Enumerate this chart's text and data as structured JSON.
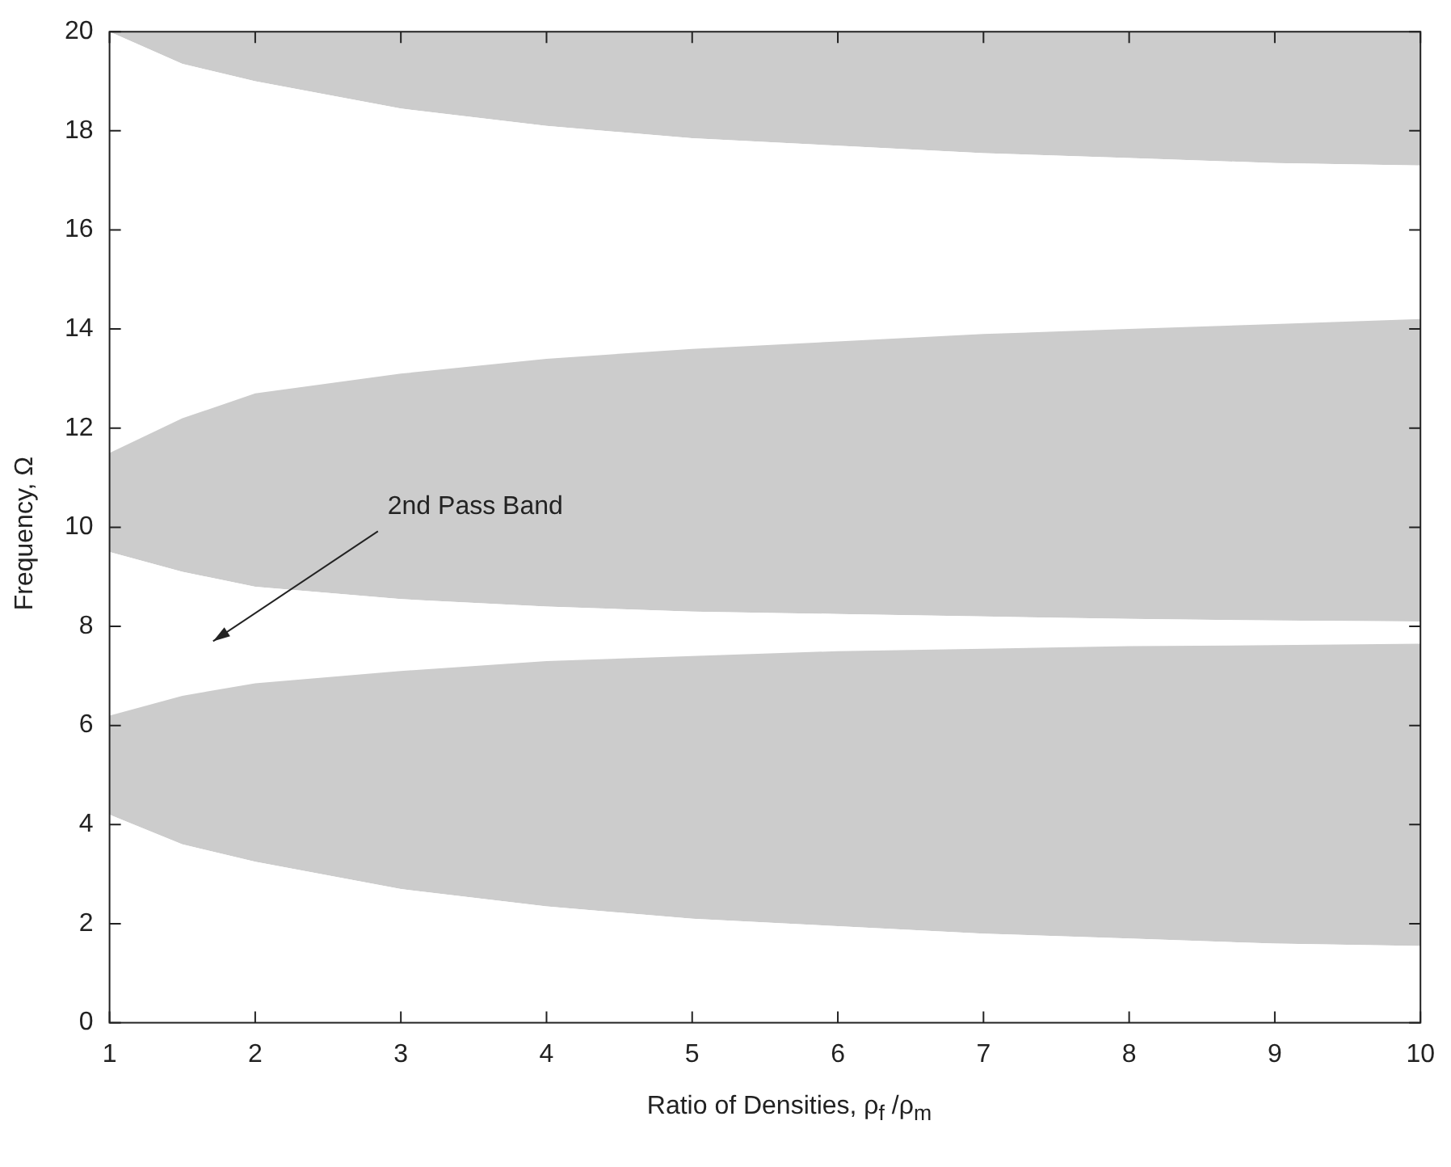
{
  "chart_data": {
    "type": "area",
    "stacked": true,
    "xlabel": "Ratio of Densities, ρ$_{f}$ /ρ$_{m}$",
    "ylabel": "Frequency, Ω",
    "x": [
      1,
      1.5,
      2,
      3,
      4,
      5,
      6,
      7,
      8,
      9,
      10
    ],
    "xlim": [
      1,
      10
    ],
    "xticks": [
      1,
      2,
      3,
      4,
      5,
      6,
      7,
      8,
      9,
      10
    ],
    "ylim": [
      0,
      20
    ],
    "yticks": [
      0,
      2,
      4,
      6,
      8,
      10,
      12,
      14,
      16,
      18,
      20
    ],
    "grid": false,
    "legend": false,
    "series": [
      {
        "color": "#ffffff",
        "values": [
          4.2,
          3.6,
          3.25,
          2.7,
          2.35,
          2.1,
          1.95,
          1.8,
          1.7,
          1.6,
          1.55
        ]
      },
      {
        "color": "#cccccc",
        "values": [
          2,
          3,
          3.6,
          4.4,
          4.95,
          5.3,
          5.55,
          5.75,
          5.9,
          6.02,
          6.1
        ]
      },
      {
        "color": "#ffffff",
        "values": [
          3.3,
          2.5,
          1.95,
          1.45,
          1.1,
          0.9,
          0.75,
          0.65,
          0.55,
          0.5,
          0.45
        ]
      },
      {
        "color": "#cccccc",
        "values": [
          2,
          3.1,
          3.9,
          4.55,
          5,
          5.3,
          5.5,
          5.7,
          5.85,
          5.98,
          6.1
        ]
      },
      {
        "color": "#ffffff",
        "values": [
          8.5,
          7.15,
          6.3,
          5.35,
          4.7,
          4.25,
          3.95,
          3.65,
          3.45,
          3.25,
          3.1
        ]
      },
      {
        "color": "#cccccc",
        "values": [
          0,
          0.65,
          1,
          1.55,
          1.9,
          2.15,
          2.3,
          2.45,
          2.55,
          2.65,
          2.7
        ]
      }
    ],
    "annotations": [
      "2nd Pass Band"
    ]
  }
}
